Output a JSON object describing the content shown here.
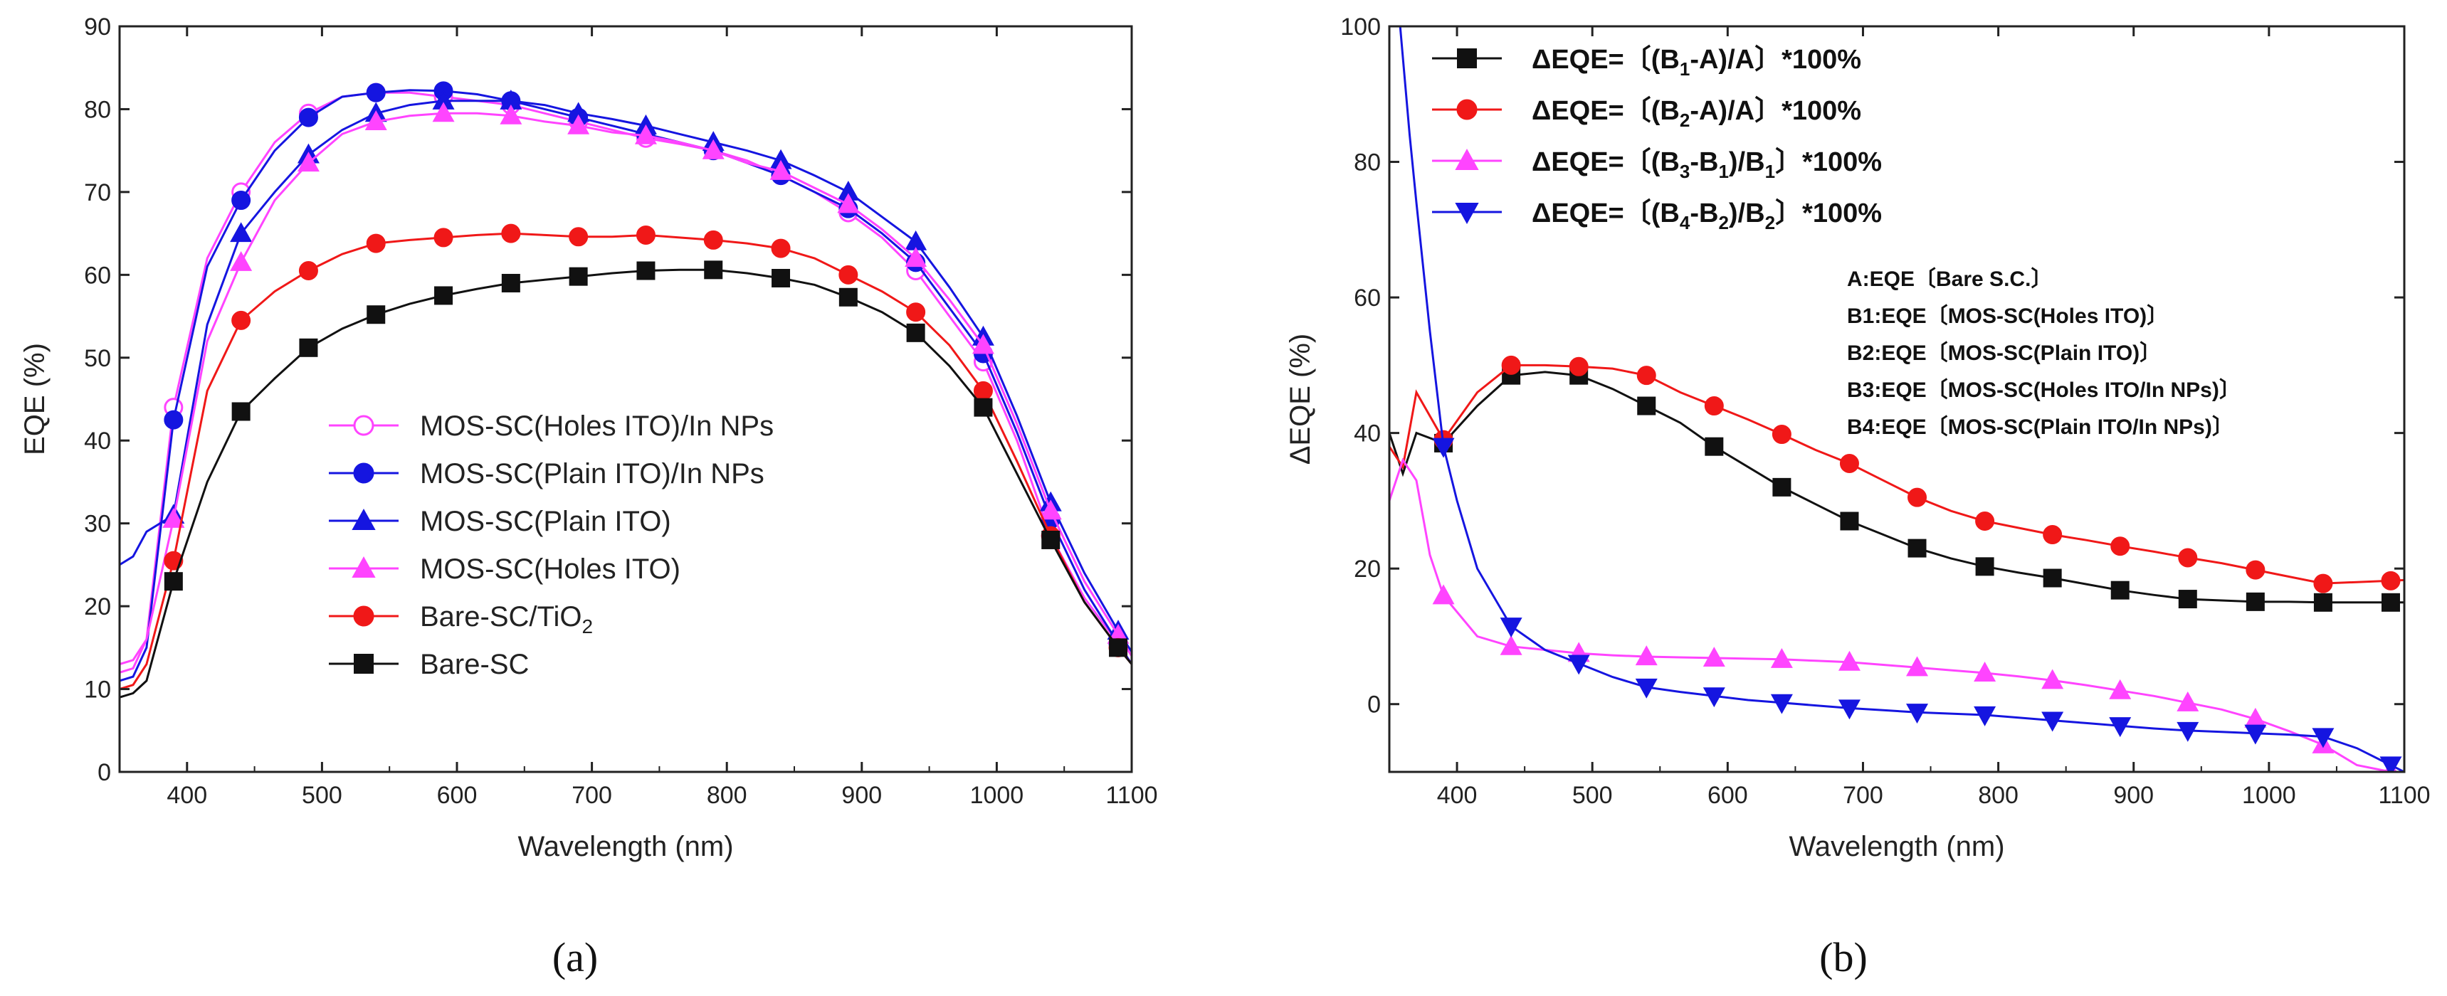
{
  "chart_data": [
    {
      "type": "line",
      "id": "a",
      "caption": "(a)",
      "xlabel": "Wavelength (nm)",
      "ylabel": "EQE (%)",
      "xlim": [
        350,
        1100
      ],
      "ylim": [
        0,
        90
      ],
      "xticks": [
        400,
        500,
        600,
        700,
        800,
        900,
        1000,
        1100
      ],
      "yticks": [
        0,
        10,
        20,
        30,
        40,
        50,
        60,
        70,
        80,
        90
      ],
      "legend_position": "lower-left",
      "series": [
        {
          "name": "MOS-SC(Holes ITO)/In NPs",
          "color": "#ff44ff",
          "marker": "open-circle",
          "x": [
            350,
            360,
            370,
            390,
            415,
            440,
            465,
            490,
            515,
            540,
            565,
            590,
            615,
            640,
            665,
            690,
            715,
            740,
            765,
            790,
            815,
            840,
            865,
            890,
            915,
            940,
            965,
            990,
            1015,
            1040,
            1065,
            1090,
            1100
          ],
          "y": [
            13,
            13.5,
            16,
            44,
            62,
            70,
            76,
            79.5,
            81.5,
            82,
            82,
            81.5,
            81,
            80.5,
            79.5,
            78.5,
            77.5,
            76.5,
            75.8,
            75,
            73.8,
            72,
            70,
            67.5,
            64.5,
            60.5,
            55,
            49.5,
            40,
            28.5,
            21,
            15.5,
            13
          ]
        },
        {
          "name": "MOS-SC(Plain ITO)/In NPs",
          "color": "#1515e0",
          "marker": "filled-circle",
          "x": [
            350,
            360,
            370,
            390,
            415,
            440,
            465,
            490,
            515,
            540,
            565,
            590,
            615,
            640,
            665,
            690,
            715,
            740,
            765,
            790,
            815,
            840,
            865,
            890,
            915,
            940,
            965,
            990,
            1015,
            1040,
            1065,
            1090,
            1100
          ],
          "y": [
            11,
            11.5,
            15,
            42.5,
            61,
            69,
            75,
            79,
            81.5,
            82,
            82.3,
            82.2,
            81.8,
            81,
            80,
            79,
            78,
            77,
            76,
            75,
            73.5,
            72,
            70,
            68,
            65,
            61.5,
            56,
            50.5,
            41,
            30.5,
            22,
            15.5,
            13
          ]
        },
        {
          "name": "MOS-SC(Plain ITO)",
          "color": "#1515e0",
          "marker": "filled-triangle-up",
          "x": [
            350,
            360,
            370,
            390,
            415,
            440,
            465,
            490,
            515,
            540,
            565,
            590,
            615,
            640,
            665,
            690,
            715,
            740,
            765,
            790,
            815,
            840,
            865,
            890,
            915,
            940,
            965,
            990,
            1015,
            1040,
            1065,
            1090,
            1100
          ],
          "y": [
            25,
            26,
            29,
            31,
            54,
            65,
            70,
            74.5,
            77.5,
            79.5,
            80.5,
            81,
            81,
            81,
            80.5,
            79.5,
            78.8,
            78,
            77,
            76,
            75,
            73.8,
            72,
            70,
            67,
            64,
            58.5,
            52.5,
            43,
            32.5,
            24,
            17,
            14.5
          ]
        },
        {
          "name": "MOS-SC(Holes ITO)",
          "color": "#ff44ff",
          "marker": "filled-triangle-up",
          "x": [
            350,
            360,
            370,
            390,
            415,
            440,
            465,
            490,
            515,
            540,
            565,
            590,
            615,
            640,
            665,
            690,
            715,
            740,
            765,
            790,
            815,
            840,
            865,
            890,
            915,
            940,
            965,
            990,
            1015,
            1040,
            1065,
            1090,
            1100
          ],
          "y": [
            12,
            12.5,
            16,
            30.5,
            52,
            61.5,
            69,
            73.5,
            77,
            78.5,
            79.2,
            79.5,
            79.5,
            79.2,
            78.5,
            78,
            77.2,
            76.8,
            76,
            75,
            73.5,
            72.5,
            70.5,
            68.5,
            65.5,
            62,
            57,
            51.5,
            42,
            31.5,
            23,
            16.5,
            14
          ]
        },
        {
          "name": "Bare-SC/TiO₂",
          "color": "#f01818",
          "marker": "filled-circle",
          "x": [
            350,
            360,
            370,
            390,
            415,
            440,
            465,
            490,
            515,
            540,
            565,
            590,
            615,
            640,
            665,
            690,
            715,
            740,
            765,
            790,
            815,
            840,
            865,
            890,
            915,
            940,
            965,
            990,
            1015,
            1040,
            1065,
            1090,
            1100
          ],
          "y": [
            10,
            10.5,
            13,
            25.5,
            46,
            54.5,
            58,
            60.5,
            62.5,
            63.8,
            64.2,
            64.5,
            64.8,
            65,
            64.8,
            64.6,
            64.6,
            64.8,
            64.5,
            64.2,
            63.8,
            63.2,
            62,
            60,
            58,
            55.5,
            51.5,
            46,
            37.5,
            28.5,
            20.5,
            15,
            13
          ]
        },
        {
          "name": "Bare-SC",
          "color": "#111111",
          "marker": "filled-square",
          "x": [
            350,
            360,
            370,
            390,
            415,
            440,
            465,
            490,
            515,
            540,
            565,
            590,
            615,
            640,
            665,
            690,
            715,
            740,
            765,
            790,
            815,
            840,
            865,
            890,
            915,
            940,
            965,
            990,
            1015,
            1040,
            1065,
            1090,
            1100
          ],
          "y": [
            9,
            9.5,
            11,
            23,
            35,
            43.5,
            47.5,
            51.2,
            53.5,
            55.2,
            56.5,
            57.5,
            58.3,
            59,
            59.4,
            59.8,
            60.2,
            60.5,
            60.6,
            60.6,
            60.2,
            59.6,
            58.8,
            57.3,
            55.5,
            53,
            49,
            44,
            36,
            28,
            20.5,
            15,
            13
          ]
        }
      ]
    },
    {
      "type": "line",
      "id": "b",
      "caption": "(b)",
      "xlabel": "Wavelength (nm)",
      "ylabel": "ΔEQE (%)",
      "xlim": [
        350,
        1100
      ],
      "ylim": [
        -10,
        100
      ],
      "xticks": [
        400,
        500,
        600,
        700,
        800,
        900,
        1000,
        1100
      ],
      "yticks": [
        0,
        20,
        40,
        60,
        80,
        100
      ],
      "legend_position": "top-left",
      "series": [
        {
          "name": "ΔEQE=〔(B1-A)/A〕*100%",
          "label_parts": {
            "pre": "ΔEQE=〔(B",
            "sub1": "1",
            "mid": "-A)/A〕*100%"
          },
          "color": "#111111",
          "marker": "filled-square",
          "x": [
            350,
            360,
            370,
            390,
            415,
            440,
            465,
            490,
            515,
            540,
            565,
            590,
            615,
            640,
            665,
            690,
            715,
            740,
            765,
            790,
            815,
            840,
            865,
            890,
            915,
            940,
            965,
            990,
            1015,
            1040,
            1065,
            1090,
            1100
          ],
          "y": [
            40,
            34,
            40,
            38.5,
            44,
            48.5,
            49,
            48.5,
            46.5,
            44,
            41.5,
            38,
            35,
            32,
            29.5,
            27,
            25,
            23,
            21.5,
            20.3,
            19.4,
            18.6,
            17.7,
            16.8,
            16.1,
            15.5,
            15.3,
            15.1,
            15.1,
            15,
            15,
            15,
            15
          ]
        },
        {
          "name": "ΔEQE=〔(B2-A)/A〕*100%",
          "label_parts": {
            "pre": "ΔEQE=〔(B",
            "sub1": "2",
            "mid": "-A)/A〕*100%"
          },
          "color": "#f01818",
          "marker": "filled-circle",
          "x": [
            350,
            360,
            370,
            390,
            415,
            440,
            465,
            490,
            515,
            540,
            565,
            590,
            615,
            640,
            665,
            690,
            715,
            740,
            765,
            790,
            815,
            840,
            865,
            890,
            915,
            940,
            965,
            990,
            1015,
            1040,
            1065,
            1090,
            1100
          ],
          "y": [
            38,
            35,
            46,
            39,
            46,
            50,
            50,
            49.8,
            49.5,
            48.5,
            46,
            44,
            42,
            39.8,
            37.5,
            35.5,
            33,
            30.5,
            28.5,
            27,
            26,
            25,
            24.2,
            23.3,
            22.5,
            21.6,
            20.8,
            19.8,
            18.8,
            17.8,
            18,
            18.2,
            18.3
          ]
        },
        {
          "name": "ΔEQE=〔(B3-B1)/B1〕*100%",
          "label_parts": {
            "pre": "ΔEQE=〔(B",
            "sub1": "3",
            "mid": "-B",
            "sub2": "1",
            "mid2": ")/B",
            "sub3": "1",
            "post": "〕*100%"
          },
          "color": "#ff44ff",
          "marker": "filled-triangle-up",
          "x": [
            350,
            360,
            370,
            380,
            390,
            415,
            440,
            465,
            490,
            515,
            540,
            565,
            590,
            615,
            640,
            665,
            690,
            715,
            740,
            765,
            790,
            815,
            840,
            865,
            890,
            915,
            940,
            965,
            990,
            1015,
            1040,
            1065,
            1090,
            1100
          ],
          "y": [
            30,
            36,
            33,
            22,
            16,
            10,
            8.5,
            8,
            7.5,
            7.2,
            7,
            6.9,
            6.8,
            6.7,
            6.6,
            6.4,
            6.2,
            5.8,
            5.4,
            5.0,
            4.6,
            4.1,
            3.5,
            2.8,
            2.0,
            1.2,
            0.2,
            -0.8,
            -2.2,
            -4,
            -6,
            -9,
            -10,
            -10
          ]
        },
        {
          "name": "ΔEQE=〔(B4-B2)/B2〕*100%",
          "label_parts": {
            "pre": "ΔEQE=〔(B",
            "sub1": "4",
            "mid": "-B",
            "sub2": "2",
            "mid2": ")/B",
            "sub3": "2",
            "post": "〕*100%"
          },
          "color": "#1515e0",
          "marker": "filled-triangle-down",
          "x": [
            358,
            365,
            370,
            380,
            390,
            400,
            415,
            440,
            465,
            490,
            515,
            540,
            565,
            590,
            615,
            640,
            665,
            690,
            715,
            740,
            765,
            790,
            815,
            840,
            865,
            890,
            915,
            940,
            965,
            990,
            1015,
            1040,
            1065,
            1090,
            1100
          ],
          "y": [
            100,
            84,
            74,
            55,
            38,
            30,
            20,
            11.5,
            8,
            6,
            4,
            2.5,
            1.8,
            1.2,
            0.6,
            0.2,
            -0.2,
            -0.6,
            -0.9,
            -1.2,
            -1.4,
            -1.6,
            -2.0,
            -2.4,
            -2.8,
            -3.2,
            -3.6,
            -3.9,
            -4.1,
            -4.3,
            -4.5,
            -4.8,
            -6.5,
            -9,
            -10
          ]
        }
      ],
      "notes": [
        "A:EQE〔Bare S.C.〕",
        "B1:EQE〔MOS-SC(Holes ITO)〕",
        "B2:EQE〔MOS-SC(Plain ITO)〕",
        "B3:EQE〔MOS-SC(Holes ITO/In NPs)〕",
        "B4:EQE〔MOS-SC(Plain ITO/In NPs)〕"
      ]
    }
  ]
}
